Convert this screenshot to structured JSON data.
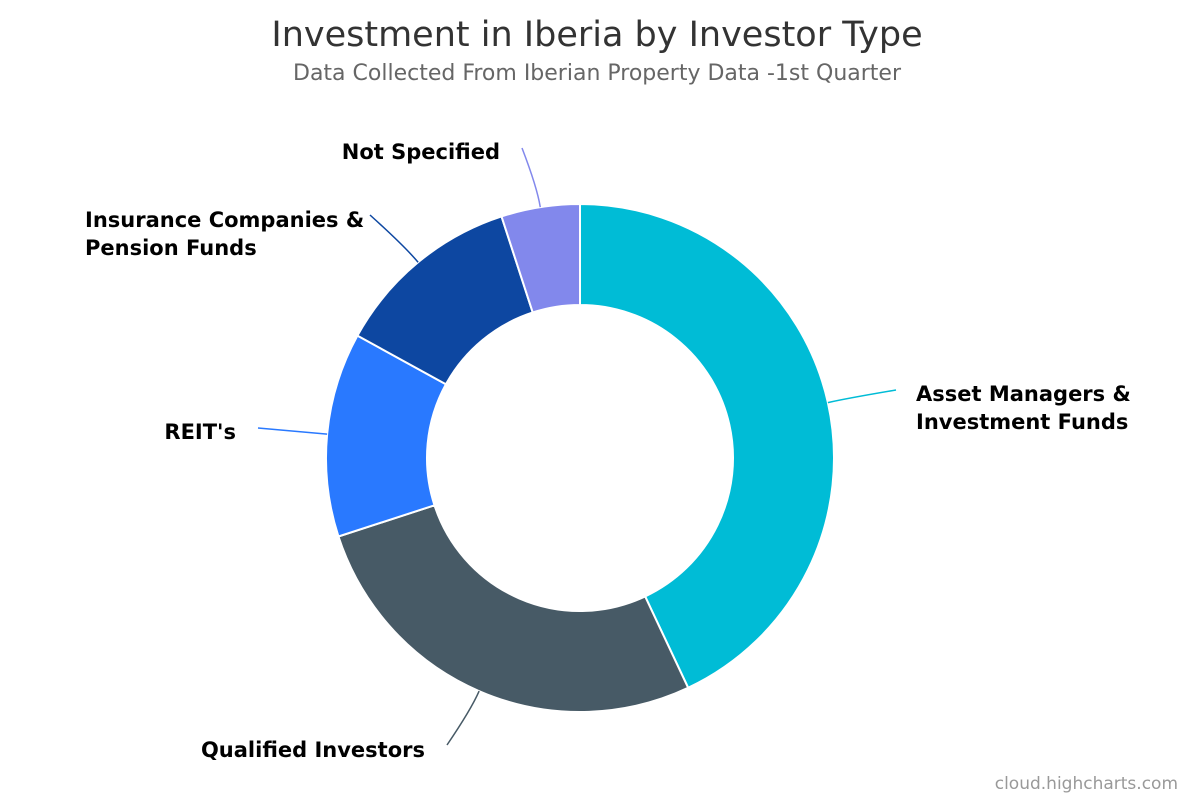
{
  "chart_data": {
    "type": "donut",
    "title": "Investment in Iberia by Investor Type",
    "subtitle": "Data Collected From Iberian Property Data -1st Quarter",
    "categories": [
      "Asset Managers & Investment Funds",
      "Qualified Investors",
      "REIT's",
      "Insurance Companies & Pension Funds",
      "Not Specified"
    ],
    "values": [
      43,
      27,
      13,
      12,
      5
    ],
    "colors": [
      "#00bcd6",
      "#475a66",
      "#2979ff",
      "#0d47a1",
      "#8288ec"
    ],
    "credits": "cloud.highcharts.com"
  }
}
